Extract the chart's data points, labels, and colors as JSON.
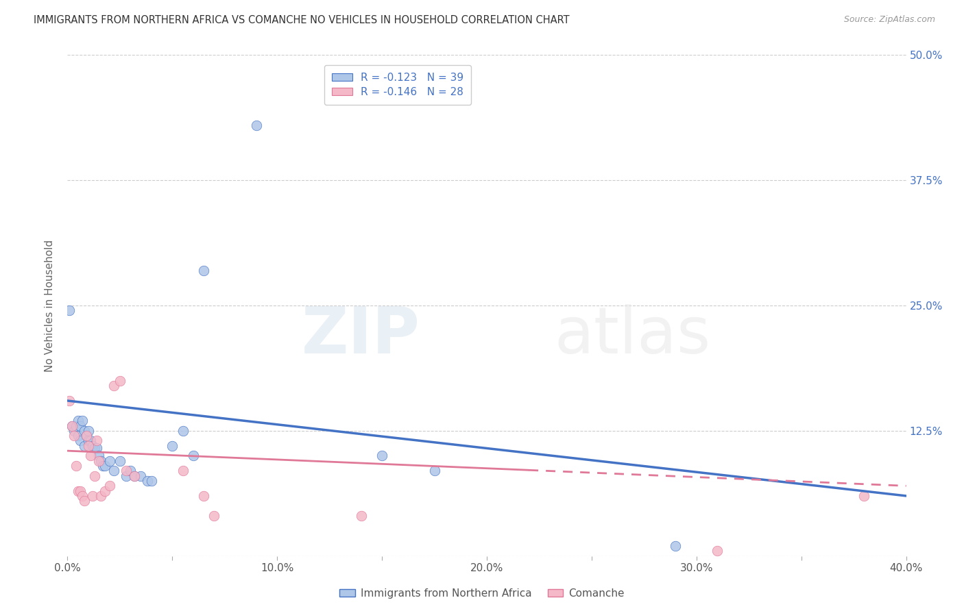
{
  "title": "IMMIGRANTS FROM NORTHERN AFRICA VS COMANCHE NO VEHICLES IN HOUSEHOLD CORRELATION CHART",
  "source": "Source: ZipAtlas.com",
  "ylabel": "No Vehicles in Household",
  "xlim": [
    0.0,
    0.4
  ],
  "ylim": [
    0.0,
    0.5
  ],
  "blue_R": "-0.123",
  "blue_N": "39",
  "pink_R": "-0.146",
  "pink_N": "28",
  "blue_color": "#aec6e8",
  "blue_line_color": "#4472c4",
  "pink_color": "#f4b8c8",
  "pink_line_color": "#e07898",
  "watermark_zip": "ZIP",
  "watermark_atlas": "atlas",
  "background_color": "#ffffff",
  "grid_color": "#cccccc",
  "ytick_right_labels": [
    "12.5%",
    "25.0%",
    "37.5%",
    "50.0%"
  ],
  "ytick_right_pos": [
    0.125,
    0.25,
    0.375,
    0.5
  ],
  "blue_scatter_x": [
    0.001,
    0.002,
    0.003,
    0.004,
    0.005,
    0.005,
    0.006,
    0.006,
    0.007,
    0.008,
    0.008,
    0.009,
    0.01,
    0.01,
    0.011,
    0.012,
    0.013,
    0.014,
    0.015,
    0.016,
    0.017,
    0.018,
    0.02,
    0.022,
    0.025,
    0.028,
    0.03,
    0.032,
    0.035,
    0.038,
    0.04,
    0.05,
    0.055,
    0.06,
    0.065,
    0.09,
    0.15,
    0.175,
    0.29
  ],
  "blue_scatter_y": [
    0.245,
    0.13,
    0.125,
    0.13,
    0.135,
    0.12,
    0.115,
    0.13,
    0.135,
    0.11,
    0.125,
    0.12,
    0.125,
    0.115,
    0.115,
    0.11,
    0.108,
    0.108,
    0.1,
    0.095,
    0.09,
    0.09,
    0.095,
    0.085,
    0.095,
    0.08,
    0.085,
    0.08,
    0.08,
    0.075,
    0.075,
    0.11,
    0.125,
    0.1,
    0.285,
    0.43,
    0.1,
    0.085,
    0.01
  ],
  "pink_scatter_x": [
    0.001,
    0.002,
    0.003,
    0.004,
    0.005,
    0.006,
    0.007,
    0.008,
    0.009,
    0.01,
    0.011,
    0.012,
    0.013,
    0.014,
    0.015,
    0.016,
    0.018,
    0.02,
    0.022,
    0.025,
    0.028,
    0.032,
    0.055,
    0.065,
    0.07,
    0.14,
    0.31,
    0.38
  ],
  "pink_scatter_y": [
    0.155,
    0.13,
    0.12,
    0.09,
    0.065,
    0.065,
    0.06,
    0.055,
    0.12,
    0.11,
    0.1,
    0.06,
    0.08,
    0.115,
    0.095,
    0.06,
    0.065,
    0.07,
    0.17,
    0.175,
    0.085,
    0.08,
    0.085,
    0.06,
    0.04,
    0.04,
    0.005,
    0.06
  ],
  "blue_trend_x0": 0.0,
  "blue_trend_x1": 0.4,
  "blue_trend_y0": 0.155,
  "blue_trend_y1": 0.06,
  "pink_trend_x0": 0.0,
  "pink_trend_x1": 0.4,
  "pink_trend_y0": 0.105,
  "pink_trend_y1": 0.07
}
